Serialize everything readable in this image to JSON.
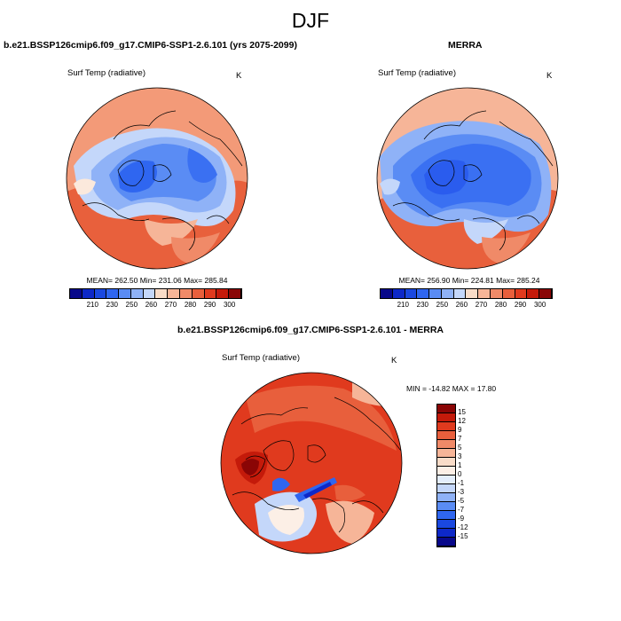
{
  "figure": {
    "title": "DJF"
  },
  "panels": [
    {
      "title": "b.e21.BSSP126cmip6.f09_g17.CMIP6-SSP1-2.6.101 (yrs 2075-2099)",
      "variable": "Surf Temp (radiative)",
      "units": "K",
      "stats": "MEAN= 262.50   Min= 231.06   Max= 285.84"
    },
    {
      "title": "MERRA",
      "variable": "Surf Temp (radiative)",
      "units": "K",
      "stats": "MEAN= 256.90   Min= 224.81   Max= 285.24"
    },
    {
      "title": "b.e21.BSSP126cmip6.f09_g17.CMIP6-SSP1-2.6.101 - MERRA",
      "variable": "Surf Temp (radiative)",
      "units": "K",
      "stats": "MIN = -14.82  MAX =  17.80"
    }
  ],
  "colorbar_abs": {
    "ticks": [
      "210",
      "230",
      "250",
      "260",
      "270",
      "280",
      "290",
      "300"
    ],
    "colors": [
      "#08088a",
      "#0d28c8",
      "#1a48e0",
      "#2f66f0",
      "#5a8cf4",
      "#8fb2f7",
      "#c4d7fa",
      "#f9dcc8",
      "#f6b598",
      "#f08a68",
      "#e85f3c",
      "#e03a1e",
      "#c41a0a",
      "#8a0505"
    ]
  },
  "colorbar_diff": {
    "ticks": [
      "15",
      "12",
      "9",
      "7",
      "5",
      "3",
      "1",
      "0",
      "-1",
      "-3",
      "-5",
      "-7",
      "-9",
      "-12",
      "-15"
    ],
    "colors": [
      "#8a0505",
      "#c41a0a",
      "#e03a1e",
      "#e85f3c",
      "#f08a68",
      "#f6b598",
      "#f9dcc8",
      "#fcefe6",
      "#e4eefc",
      "#c4d7fa",
      "#8fb2f7",
      "#5a8cf4",
      "#2f66f0",
      "#1a48e0",
      "#0d28c8",
      "#08088a"
    ]
  }
}
